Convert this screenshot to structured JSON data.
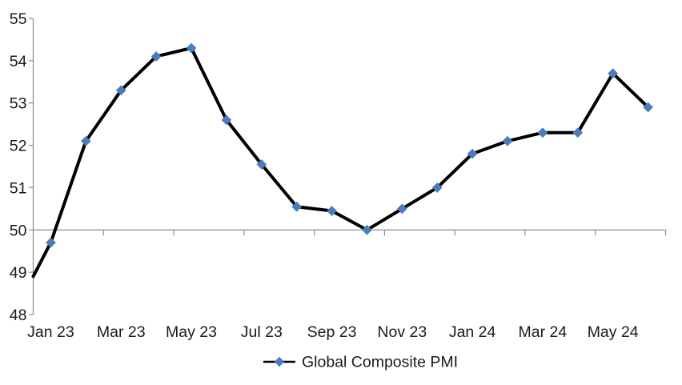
{
  "chart_data": {
    "type": "line",
    "title": "",
    "series": [
      {
        "name": "Global Composite PMI",
        "values": [
          49.7,
          52.1,
          53.3,
          54.1,
          54.3,
          52.6,
          51.55,
          50.55,
          50.45,
          50.0,
          50.5,
          51.0,
          51.8,
          52.1,
          52.3,
          52.3,
          53.7,
          52.9
        ],
        "line_color": "#000000",
        "marker_color": "#4A7EBB",
        "marker_shape": "diamond"
      }
    ],
    "categories": [
      "Jan 23",
      "Feb 23",
      "Mar 23",
      "Apr 23",
      "May 23",
      "Jun 23",
      "Jul 23",
      "Aug 23",
      "Sep 23",
      "Oct 23",
      "Nov 23",
      "Dec 23",
      "Jan 24",
      "Feb 24",
      "Mar 24",
      "Apr 24",
      "May 24",
      "Jun 24"
    ],
    "x_axis_tick_labels": [
      "Jan 23",
      "Mar 23",
      "May 23",
      "Jul 23",
      "Sep 23",
      "Nov 23",
      "Jan 24",
      "Mar 24",
      "May 24"
    ],
    "x_label_interval": 2,
    "y_axis_ticks": [
      48,
      49,
      50,
      51,
      52,
      53,
      54,
      55
    ],
    "ylim": [
      48,
      55
    ],
    "category_axis_crosses_at": 50,
    "line_start_value_at_left_axis": 48.9,
    "grid": "off",
    "legend_position": "bottom-center",
    "legend_label": "Global Composite PMI",
    "axis_color": "#8C8C8C",
    "text_color": "#1A1A1A",
    "background_color": "#FFFFFF"
  }
}
